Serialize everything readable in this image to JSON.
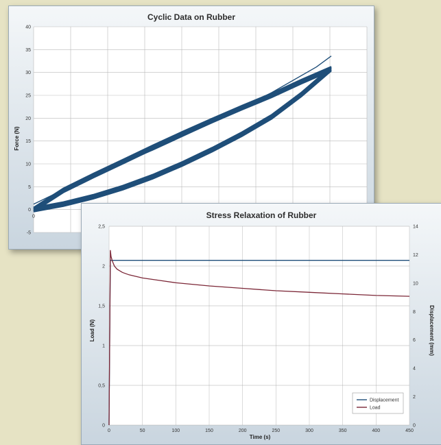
{
  "chart_data": [
    {
      "type": "line",
      "title": "Cyclic Data on Rubber",
      "xlabel": "",
      "ylabel": "Force (N)",
      "ylim": [
        -5,
        40
      ],
      "yticks": [
        -5,
        0,
        5,
        10,
        15,
        20,
        25,
        30,
        35,
        40
      ],
      "x_tick_labels": [
        "0"
      ],
      "grid": true,
      "series": [
        {
          "loading": {
            "x": [
              0.0,
              0.1,
              0.2,
              0.3,
              0.4,
              0.5,
              0.6,
              0.7,
              0.8,
              0.9,
              1.0
            ],
            "y": [
              0.0,
              1.2,
              2.8,
              4.8,
              7.2,
              10.0,
              13.1,
              16.5,
              20.3,
              25.2,
              30.8
            ]
          },
          "unloading": {
            "x": [
              1.0,
              0.9,
              0.8,
              0.7,
              0.6,
              0.5,
              0.4,
              0.3,
              0.2,
              0.1,
              0.0
            ],
            "y": [
              30.8,
              28.0,
              25.0,
              22.3,
              19.5,
              16.6,
              13.6,
              10.5,
              7.4,
              4.2,
              0.0
            ]
          },
          "first_cycle": {
            "x": [
              0.0,
              0.2,
              0.4,
              0.6,
              0.8,
              0.95,
              1.0
            ],
            "y": [
              1.2,
              7.5,
              13.0,
              19.0,
              25.6,
              31.2,
              33.6
            ]
          }
        }
      ],
      "line_color": "#1f4e79"
    },
    {
      "type": "line",
      "title": "Stress Relaxation of Rubber",
      "xlabel": "Time (s)",
      "ylabel": "Load (N)",
      "y2label": "Displacement (mm)",
      "xlim": [
        0,
        450
      ],
      "ylim": [
        0,
        2.5
      ],
      "y2lim": [
        0,
        14
      ],
      "xticks": [
        0,
        50,
        100,
        150,
        200,
        250,
        300,
        350,
        400,
        450
      ],
      "yticks": [
        0,
        0.5,
        1,
        1.5,
        2,
        2.5
      ],
      "y2ticks": [
        0,
        2,
        4,
        6,
        8,
        10,
        12,
        14
      ],
      "grid": true,
      "legend": "bottom-right",
      "series": [
        {
          "name": "Displacement",
          "axis": "right",
          "color": "#1f4e79",
          "x": [
            0,
            2,
            3,
            450
          ],
          "y": [
            0,
            11.6,
            11.6,
            11.6
          ]
        },
        {
          "name": "Load",
          "axis": "left",
          "color": "#7b2636",
          "x": [
            0,
            2,
            3,
            5,
            8,
            12,
            20,
            30,
            50,
            75,
            100,
            150,
            200,
            250,
            300,
            350,
            400,
            450
          ],
          "y": [
            0,
            2.2,
            2.12,
            2.06,
            2.0,
            1.96,
            1.92,
            1.89,
            1.85,
            1.82,
            1.79,
            1.75,
            1.72,
            1.69,
            1.67,
            1.65,
            1.63,
            1.62
          ]
        }
      ]
    }
  ]
}
